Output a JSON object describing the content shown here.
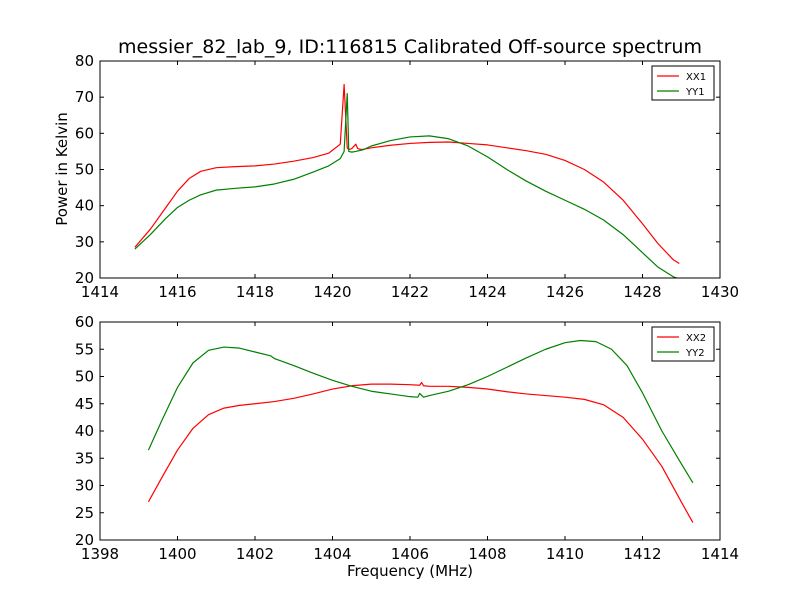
{
  "chart_data": [
    {
      "type": "line",
      "title": "messier_82_lab_9, ID:116815 Calibrated Off-source spectrum",
      "xlabel": "",
      "ylabel": "Power in Kelvin",
      "xlim": [
        1414,
        1430
      ],
      "ylim": [
        20,
        80
      ],
      "xticks": [
        "1414",
        "1416",
        "1418",
        "1420",
        "1422",
        "1424",
        "1426",
        "1428",
        "1430"
      ],
      "yticks": [
        "20",
        "30",
        "40",
        "50",
        "60",
        "70",
        "80"
      ],
      "legend_position": "top-right",
      "series": [
        {
          "name": "XX1",
          "color": "#ff0000",
          "x": [
            1414.9,
            1415.3,
            1415.7,
            1416.0,
            1416.3,
            1416.6,
            1417.0,
            1417.5,
            1418.0,
            1418.5,
            1419.0,
            1419.5,
            1419.9,
            1420.2,
            1420.3,
            1420.38,
            1420.42,
            1420.5,
            1420.6,
            1420.65,
            1420.75,
            1421.0,
            1421.5,
            1422.0,
            1422.5,
            1423.0,
            1423.5,
            1424.0,
            1424.5,
            1425.0,
            1425.5,
            1426.0,
            1426.5,
            1427.0,
            1427.5,
            1428.0,
            1428.4,
            1428.8,
            1428.95
          ],
          "y": [
            28.5,
            33.5,
            39.5,
            44.0,
            47.5,
            49.5,
            50.5,
            50.8,
            51.0,
            51.5,
            52.3,
            53.3,
            54.5,
            57.0,
            73.5,
            56.0,
            55.5,
            55.8,
            57.0,
            55.8,
            55.5,
            56.0,
            56.7,
            57.2,
            57.5,
            57.6,
            57.2,
            56.8,
            56.0,
            55.2,
            54.2,
            52.5,
            50.0,
            46.5,
            41.5,
            35.0,
            29.5,
            25.0,
            24.0
          ]
        },
        {
          "name": "YY1",
          "color": "#008000",
          "x": [
            1414.9,
            1415.3,
            1415.7,
            1416.0,
            1416.3,
            1416.6,
            1417.0,
            1417.5,
            1418.0,
            1418.5,
            1419.0,
            1419.5,
            1419.9,
            1420.2,
            1420.3,
            1420.38,
            1420.42,
            1420.5,
            1420.6,
            1420.8,
            1421.0,
            1421.5,
            1422.0,
            1422.5,
            1423.0,
            1423.5,
            1424.0,
            1424.5,
            1425.0,
            1425.5,
            1426.0,
            1426.5,
            1427.0,
            1427.5,
            1428.0,
            1428.4,
            1428.8,
            1428.95
          ],
          "y": [
            28.0,
            32.0,
            36.5,
            39.5,
            41.5,
            43.0,
            44.3,
            44.8,
            45.2,
            46.0,
            47.3,
            49.3,
            51.0,
            53.0,
            55.0,
            71.0,
            55.0,
            54.8,
            55.0,
            55.5,
            56.5,
            58.0,
            59.0,
            59.3,
            58.5,
            56.5,
            53.5,
            50.0,
            46.8,
            44.0,
            41.5,
            39.0,
            36.0,
            32.0,
            27.0,
            23.0,
            20.3,
            19.8
          ]
        }
      ]
    },
    {
      "type": "line",
      "title": "",
      "xlabel": "Frequency (MHz)",
      "ylabel": "",
      "xlim": [
        1398,
        1414
      ],
      "ylim": [
        20,
        60
      ],
      "xticks": [
        "1398",
        "1400",
        "1402",
        "1404",
        "1406",
        "1408",
        "1410",
        "1412",
        "1414"
      ],
      "yticks": [
        "20",
        "25",
        "30",
        "35",
        "40",
        "45",
        "50",
        "55",
        "60"
      ],
      "legend_position": "top-right",
      "series": [
        {
          "name": "XX2",
          "color": "#ff0000",
          "x": [
            1399.25,
            1399.6,
            1400.0,
            1400.4,
            1400.8,
            1401.2,
            1401.6,
            1402.0,
            1402.5,
            1403.0,
            1403.5,
            1404.0,
            1404.5,
            1405.0,
            1405.5,
            1406.0,
            1406.25,
            1406.3,
            1406.35,
            1406.5,
            1407.0,
            1407.5,
            1408.0,
            1408.5,
            1409.0,
            1409.5,
            1410.0,
            1410.5,
            1411.0,
            1411.5,
            1412.0,
            1412.5,
            1413.0,
            1413.3
          ],
          "y": [
            27.0,
            31.5,
            36.5,
            40.5,
            43.0,
            44.2,
            44.7,
            45.0,
            45.4,
            46.0,
            46.8,
            47.7,
            48.3,
            48.6,
            48.6,
            48.5,
            48.4,
            48.9,
            48.3,
            48.2,
            48.2,
            48.0,
            47.7,
            47.2,
            46.8,
            46.5,
            46.2,
            45.8,
            44.8,
            42.5,
            38.5,
            33.5,
            27.0,
            23.2
          ]
        },
        {
          "name": "YY2",
          "color": "#008000",
          "x": [
            1399.25,
            1399.6,
            1400.0,
            1400.4,
            1400.8,
            1401.2,
            1401.6,
            1402.0,
            1402.4,
            1402.5,
            1403.0,
            1403.5,
            1404.0,
            1404.5,
            1405.0,
            1405.5,
            1406.0,
            1406.2,
            1406.25,
            1406.35,
            1406.5,
            1407.0,
            1407.5,
            1408.0,
            1408.5,
            1409.0,
            1409.5,
            1410.0,
            1410.4,
            1410.8,
            1411.2,
            1411.6,
            1412.0,
            1412.5,
            1413.0,
            1413.3
          ],
          "y": [
            36.5,
            42.0,
            48.0,
            52.5,
            54.8,
            55.4,
            55.2,
            54.5,
            53.8,
            53.3,
            52.0,
            50.6,
            49.3,
            48.2,
            47.3,
            46.8,
            46.3,
            46.2,
            46.9,
            46.2,
            46.5,
            47.3,
            48.5,
            50.0,
            51.7,
            53.4,
            55.0,
            56.2,
            56.6,
            56.4,
            55.0,
            52.0,
            47.0,
            40.0,
            34.0,
            30.5
          ]
        }
      ]
    }
  ]
}
